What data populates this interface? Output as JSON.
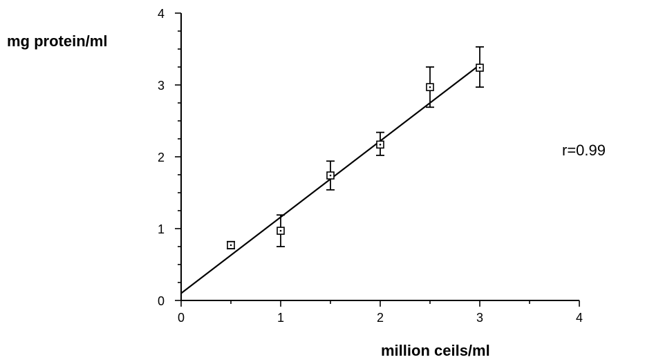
{
  "chart_data": {
    "type": "scatter",
    "title": "",
    "xlabel": "million ceils/ml",
    "ylabel": "mg protein/ml",
    "xlim": [
      0,
      4
    ],
    "ylim": [
      0,
      4
    ],
    "x_ticks": [
      "0",
      "1",
      "2",
      "3",
      "4"
    ],
    "y_ticks": [
      "0",
      "1",
      "2",
      "3",
      "4"
    ],
    "grid": false,
    "marker": "open-square",
    "series": [
      {
        "points": [
          {
            "x": 0.5,
            "y": 0.77,
            "err_low": 0.05,
            "err_high": 0.05
          },
          {
            "x": 1.0,
            "y": 0.97,
            "err_low": 0.22,
            "err_high": 0.22
          },
          {
            "x": 1.5,
            "y": 1.74,
            "err_low": 0.2,
            "err_high": 0.2
          },
          {
            "x": 2.0,
            "y": 2.17,
            "err_low": 0.15,
            "err_high": 0.17
          },
          {
            "x": 2.5,
            "y": 2.97,
            "err_low": 0.28,
            "err_high": 0.28
          },
          {
            "x": 3.0,
            "y": 3.24,
            "err_low": 0.27,
            "err_high": 0.29
          }
        ]
      }
    ],
    "fit_line": {
      "x0": 0,
      "y0": 0.1,
      "x1": 3.0,
      "y1": 3.28
    },
    "annotation": "r=0.99"
  }
}
